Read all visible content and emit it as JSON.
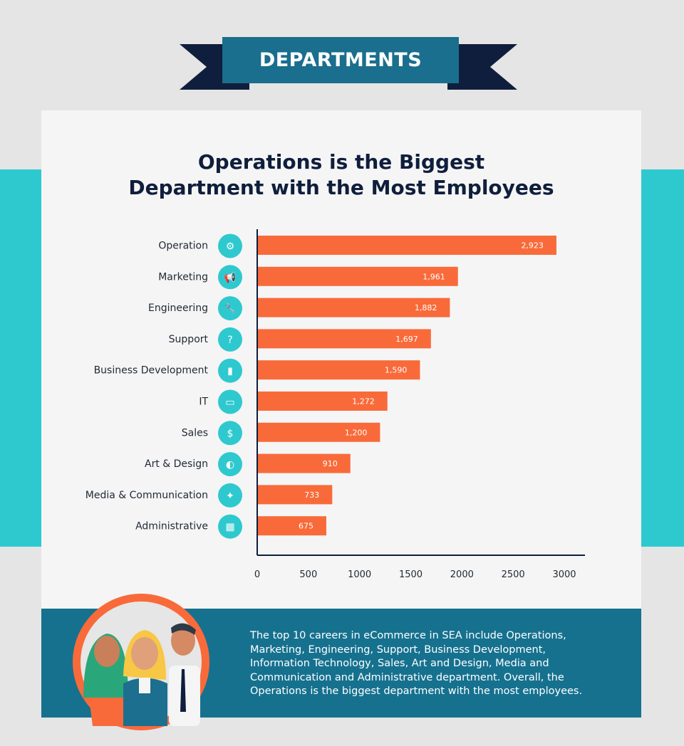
{
  "banner": {
    "title": "DEPARTMENTS"
  },
  "colors": {
    "bar": "#f96a3a",
    "teal": "#2ec9cf",
    "navy": "#0f1e3c",
    "dark_teal": "#16718f",
    "icon_circle": "#2ec9cf"
  },
  "chart_data": {
    "type": "bar",
    "orientation": "horizontal",
    "title_line1": "Operations is the Biggest",
    "title_line2": "Department with the Most Employees",
    "categories": [
      "Operation",
      "Marketing",
      "Engineering",
      "Support",
      "Business Development",
      "IT",
      "Sales",
      "Art & Design",
      "Media & Communication",
      "Administrative"
    ],
    "values": [
      2923,
      1961,
      1882,
      1697,
      1590,
      1272,
      1200,
      910,
      733,
      675
    ],
    "value_labels": [
      "2,923",
      "1,961",
      "1,882",
      "1,697",
      "1,590",
      "1,272",
      "1,200",
      "910",
      "733",
      "675"
    ],
    "icons": [
      "gears-icon",
      "megaphone-icon",
      "wrench-icon",
      "help-sign-icon",
      "bar-chart-icon",
      "laptop-lock-icon",
      "dollar-coin-icon",
      "palette-icon",
      "twitter-bird-icon",
      "calendar-icon"
    ],
    "x_ticks": [
      "0",
      "500",
      "1000",
      "1500",
      "2000",
      "2500",
      "3000"
    ],
    "xlim": [
      0,
      3200
    ],
    "grid": false
  },
  "description": "The top 10 careers in eCommerce in SEA include Operations, Marketing, Engineering, Support, Business Development, Information Technology, Sales, Art and Design, Media and Communication and Administrative department. Overall, the Operations is the biggest department with the most employees."
}
